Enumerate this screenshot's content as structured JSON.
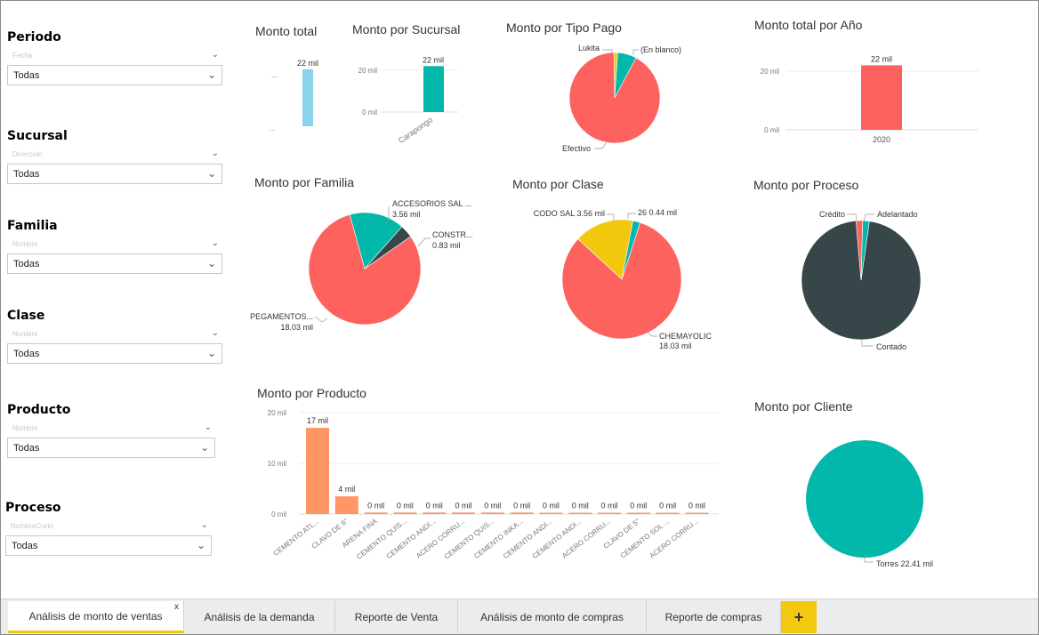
{
  "slicers": [
    {
      "title": "Periodo",
      "field": "Fecha",
      "value": "Todas"
    },
    {
      "title": "Sucursal",
      "field": "Direccion",
      "value": "Todas"
    },
    {
      "title": "Familia",
      "field": "Nombre",
      "value": "Todas"
    },
    {
      "title": "Clase",
      "field": "Nombre",
      "value": "Todas"
    },
    {
      "title": "Producto",
      "field": "Nombre",
      "value": "Todas"
    },
    {
      "title": "Proceso",
      "field": "NombreCorto",
      "value": "Todas"
    }
  ],
  "visuals": {
    "monto_total": {
      "title": "Monto total",
      "value_label": "22 mil",
      "tick_top": "...",
      "tick_bottom": "..."
    },
    "monto_sucursal": {
      "title": "Monto por Sucursal",
      "value_label": "22 mil",
      "tick_top": "20 mil",
      "tick_bottom": "0 mil",
      "category": "Carapongo"
    },
    "tipo_pago": {
      "title": "Monto por Tipo Pago",
      "label_lukita": "Lukita",
      "label_blanco": "(En blanco)",
      "label_efectivo": "Efectivo"
    },
    "total_anio": {
      "title": "Monto total por Año",
      "value_label": "22 mil",
      "tick_top": "20 mil",
      "tick_bottom": "0 mil",
      "category": "2020"
    },
    "familia": {
      "title": "Monto por Familia",
      "l1_name": "ACCESORIOS SAL ...",
      "l1_val": "3.56 mil",
      "l2_name": "CONSTR...",
      "l2_val": "0.83 mil",
      "l3_name": "PEGAMENTOS...",
      "l3_val": "18.03 mil"
    },
    "clase": {
      "title": "Monto por Clase",
      "l1": "CODO SAL 3.56 mil",
      "l2": "26 0.44 mil",
      "l3_name": "CHEMAYOLIC",
      "l3_val": "18.03 mil"
    },
    "proceso": {
      "title": "Monto por Proceso",
      "l1": "Crédito",
      "l2": "Adelantado",
      "l3": "Contado"
    },
    "producto": {
      "title": "Monto por Producto",
      "tick_top": "20 mil",
      "tick_mid": "10 mil",
      "tick_bottom": "0 mil"
    },
    "cliente": {
      "title": "Monto por Cliente",
      "label": "Torres 22.41 mil"
    }
  },
  "chart_data": [
    {
      "type": "bar",
      "title": "Monto total",
      "categories": [
        ""
      ],
      "values": [
        22
      ],
      "value_labels": [
        "22 mil"
      ]
    },
    {
      "type": "bar",
      "title": "Monto por Sucursal",
      "categories": [
        "Carapongo"
      ],
      "values": [
        22
      ],
      "ylim": [
        0,
        25
      ],
      "yticks": [
        "0 mil",
        "20 mil"
      ]
    },
    {
      "type": "pie",
      "title": "Monto por Tipo Pago",
      "labels": [
        "Efectivo",
        "Lukita",
        "(En blanco)"
      ],
      "values": [
        20.6,
        0.3,
        1.5
      ],
      "colors": [
        "#fd625e",
        "#f2c80f",
        "#01b8aa"
      ]
    },
    {
      "type": "bar",
      "title": "Monto total por Año",
      "categories": [
        "2020"
      ],
      "values": [
        22
      ],
      "ylim": [
        0,
        25
      ],
      "yticks": [
        "0 mil",
        "20 mil"
      ]
    },
    {
      "type": "pie",
      "title": "Monto por Familia",
      "labels": [
        "PEGAMENTOS...",
        "ACCESORIOS SAL ...",
        "CONSTR..."
      ],
      "values": [
        18.03,
        3.56,
        0.83
      ],
      "colors": [
        "#fd625e",
        "#01b8aa",
        "#374649"
      ]
    },
    {
      "type": "pie",
      "title": "Monto por Clase",
      "labels": [
        "CHEMAYOLIC",
        "CODO SAL",
        "26"
      ],
      "values": [
        18.03,
        3.56,
        0.44
      ],
      "colors": [
        "#fd625e",
        "#f2c80f",
        "#01b8aa"
      ]
    },
    {
      "type": "pie",
      "title": "Monto por Proceso",
      "labels": [
        "Contado",
        "Crédito",
        "Adelantado"
      ],
      "values": [
        21.6,
        0.4,
        0.4
      ],
      "colors": [
        "#374649",
        "#fd625e",
        "#01b8aa"
      ]
    },
    {
      "type": "bar",
      "title": "Monto por Producto",
      "ylim": [
        0,
        20
      ],
      "yticks": [
        "0 mil",
        "10 mil",
        "20 mil"
      ],
      "categories": [
        "CEMENTO ATL...",
        "CLAVO DE 6\"",
        "ARENA FINA",
        "CEMENTO QUIS...",
        "CEMENTO ANDI...",
        "ACERO CORRU...",
        "CEMENTO QUIS...",
        "CEMENTO INKA...",
        "CEMENTO ANDI...",
        "CEMENTO ANDI...",
        "ACERO CORRU...",
        "CLAVO DE 5\"",
        "CEMENTO SOL ...",
        "ACERO CORRU..."
      ],
      "values": [
        17,
        3.5,
        0.3,
        0.3,
        0.3,
        0.3,
        0.3,
        0.3,
        0.2,
        0.2,
        0.2,
        0.2,
        0.2,
        0.2
      ],
      "value_labels": [
        "17 mil",
        "4 mil",
        "0 mil",
        "0 mil",
        "0 mil",
        "0 mil",
        "0 mil",
        "0 mil",
        "0 mil",
        "0 mil",
        "0 mil",
        "0 mil",
        "0 mil",
        "0 mil"
      ]
    },
    {
      "type": "pie",
      "title": "Monto por Cliente",
      "labels": [
        "Torres"
      ],
      "values": [
        22.41
      ],
      "colors": [
        "#01b8aa"
      ]
    }
  ],
  "tabs": [
    {
      "label": "Análisis de monto de ventas",
      "close": "x"
    },
    {
      "label": "Análisis de la demanda"
    },
    {
      "label": "Reporte de Venta"
    },
    {
      "label": "Análisis de monto de compras"
    },
    {
      "label": "Reporte de compras"
    }
  ],
  "add_tab_label": "+",
  "colors": {
    "accent": "#f2c811",
    "teal": "#01b8aa",
    "red": "#fd625e",
    "dark": "#374649",
    "yellow": "#f2c80f",
    "orange": "#fe9666",
    "light_blue": "#8ad4eb"
  }
}
